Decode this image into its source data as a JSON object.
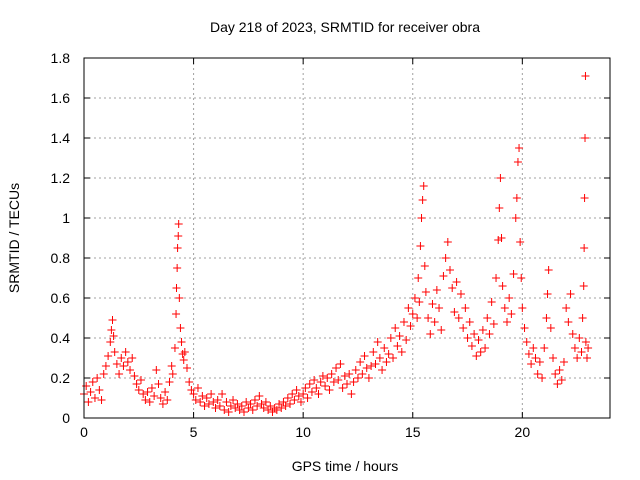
{
  "chart_data": {
    "type": "scatter",
    "title": "Day 218 of 2023, SRMTID for receiver obra",
    "xlabel": "GPS time / hours",
    "ylabel": "SRMTID / TECUs",
    "xlim": [
      0,
      24
    ],
    "ylim": [
      0,
      1.8
    ],
    "xticks": [
      0,
      5,
      10,
      15,
      20
    ],
    "yticks": [
      0,
      0.2,
      0.4,
      0.6,
      0.8,
      1,
      1.2,
      1.4,
      1.6,
      1.8
    ],
    "xtick_labels": [
      "0",
      "5",
      "10",
      "15",
      "20"
    ],
    "ytick_labels": [
      "0",
      "0.2",
      "0.4",
      "0.6",
      "0.8",
      "1",
      "1.2",
      "1.4",
      "1.6",
      "1.8"
    ],
    "grid": true,
    "marker": "+",
    "color": "#ff0000",
    "series": [
      {
        "name": "SRMTID",
        "points": [
          [
            0.0,
            0.12
          ],
          [
            0.1,
            0.16
          ],
          [
            0.2,
            0.08
          ],
          [
            0.3,
            0.13
          ],
          [
            0.4,
            0.18
          ],
          [
            0.5,
            0.1
          ],
          [
            0.6,
            0.2
          ],
          [
            0.7,
            0.14
          ],
          [
            0.8,
            0.09
          ],
          [
            0.9,
            0.22
          ],
          [
            1.0,
            0.26
          ],
          [
            1.1,
            0.31
          ],
          [
            1.2,
            0.38
          ],
          [
            1.25,
            0.44
          ],
          [
            1.3,
            0.49
          ],
          [
            1.35,
            0.41
          ],
          [
            1.4,
            0.33
          ],
          [
            1.5,
            0.27
          ],
          [
            1.6,
            0.22
          ],
          [
            1.7,
            0.3
          ],
          [
            1.8,
            0.26
          ],
          [
            1.9,
            0.33
          ],
          [
            2.0,
            0.28
          ],
          [
            2.1,
            0.24
          ],
          [
            2.2,
            0.3
          ],
          [
            2.3,
            0.21
          ],
          [
            2.4,
            0.17
          ],
          [
            2.5,
            0.14
          ],
          [
            2.6,
            0.19
          ],
          [
            2.7,
            0.12
          ],
          [
            2.8,
            0.09
          ],
          [
            2.9,
            0.13
          ],
          [
            3.0,
            0.08
          ],
          [
            3.1,
            0.15
          ],
          [
            3.2,
            0.11
          ],
          [
            3.3,
            0.24
          ],
          [
            3.4,
            0.17
          ],
          [
            3.5,
            0.1
          ],
          [
            3.6,
            0.07
          ],
          [
            3.7,
            0.13
          ],
          [
            3.8,
            0.09
          ],
          [
            3.9,
            0.18
          ],
          [
            4.0,
            0.26
          ],
          [
            4.05,
            0.22
          ],
          [
            4.15,
            0.35
          ],
          [
            4.2,
            0.52
          ],
          [
            4.22,
            0.65
          ],
          [
            4.25,
            0.75
          ],
          [
            4.27,
            0.85
          ],
          [
            4.3,
            0.91
          ],
          [
            4.32,
            0.97
          ],
          [
            4.35,
            0.6
          ],
          [
            4.4,
            0.45
          ],
          [
            4.45,
            0.38
          ],
          [
            4.5,
            0.32
          ],
          [
            4.55,
            0.29
          ],
          [
            4.6,
            0.33
          ],
          [
            4.7,
            0.25
          ],
          [
            4.8,
            0.18
          ],
          [
            4.9,
            0.14
          ],
          [
            5.0,
            0.12
          ],
          [
            5.1,
            0.09
          ],
          [
            5.2,
            0.15
          ],
          [
            5.3,
            0.08
          ],
          [
            5.4,
            0.11
          ],
          [
            5.5,
            0.06
          ],
          [
            5.6,
            0.1
          ],
          [
            5.7,
            0.07
          ],
          [
            5.8,
            0.12
          ],
          [
            5.9,
            0.08
          ],
          [
            6.0,
            0.05
          ],
          [
            6.1,
            0.09
          ],
          [
            6.2,
            0.06
          ],
          [
            6.3,
            0.12
          ],
          [
            6.4,
            0.04
          ],
          [
            6.5,
            0.08
          ],
          [
            6.6,
            0.03
          ],
          [
            6.7,
            0.06
          ],
          [
            6.8,
            0.09
          ],
          [
            6.9,
            0.05
          ],
          [
            7.0,
            0.07
          ],
          [
            7.1,
            0.04
          ],
          [
            7.2,
            0.06
          ],
          [
            7.3,
            0.03
          ],
          [
            7.4,
            0.08
          ],
          [
            7.5,
            0.05
          ],
          [
            7.6,
            0.07
          ],
          [
            7.7,
            0.04
          ],
          [
            7.8,
            0.09
          ],
          [
            7.9,
            0.06
          ],
          [
            8.0,
            0.11
          ],
          [
            8.1,
            0.07
          ],
          [
            8.2,
            0.05
          ],
          [
            8.3,
            0.08
          ],
          [
            8.4,
            0.04
          ],
          [
            8.5,
            0.06
          ],
          [
            8.6,
            0.03
          ],
          [
            8.7,
            0.05
          ],
          [
            8.8,
            0.04
          ],
          [
            8.9,
            0.07
          ],
          [
            9.0,
            0.05
          ],
          [
            9.1,
            0.08
          ],
          [
            9.2,
            0.06
          ],
          [
            9.3,
            0.1
          ],
          [
            9.4,
            0.07
          ],
          [
            9.5,
            0.12
          ],
          [
            9.6,
            0.09
          ],
          [
            9.7,
            0.14
          ],
          [
            9.8,
            0.11
          ],
          [
            9.9,
            0.08
          ],
          [
            10.0,
            0.12
          ],
          [
            10.1,
            0.15
          ],
          [
            10.2,
            0.1
          ],
          [
            10.3,
            0.17
          ],
          [
            10.4,
            0.13
          ],
          [
            10.5,
            0.19
          ],
          [
            10.6,
            0.15
          ],
          [
            10.7,
            0.12
          ],
          [
            10.8,
            0.18
          ],
          [
            10.9,
            0.21
          ],
          [
            11.0,
            0.16
          ],
          [
            11.1,
            0.2
          ],
          [
            11.2,
            0.14
          ],
          [
            11.3,
            0.22
          ],
          [
            11.4,
            0.18
          ],
          [
            11.5,
            0.25
          ],
          [
            11.6,
            0.19
          ],
          [
            11.7,
            0.27
          ],
          [
            11.8,
            0.15
          ],
          [
            11.9,
            0.21
          ],
          [
            12.0,
            0.17
          ],
          [
            12.1,
            0.22
          ],
          [
            12.2,
            0.12
          ],
          [
            12.3,
            0.18
          ],
          [
            12.4,
            0.24
          ],
          [
            12.5,
            0.2
          ],
          [
            12.6,
            0.28
          ],
          [
            12.7,
            0.22
          ],
          [
            12.8,
            0.31
          ],
          [
            12.9,
            0.25
          ],
          [
            13.0,
            0.2
          ],
          [
            13.1,
            0.26
          ],
          [
            13.2,
            0.33
          ],
          [
            13.3,
            0.27
          ],
          [
            13.4,
            0.38
          ],
          [
            13.5,
            0.3
          ],
          [
            13.6,
            0.24
          ],
          [
            13.7,
            0.35
          ],
          [
            13.8,
            0.28
          ],
          [
            13.9,
            0.32
          ],
          [
            14.0,
            0.4
          ],
          [
            14.1,
            0.3
          ],
          [
            14.2,
            0.45
          ],
          [
            14.3,
            0.36
          ],
          [
            14.4,
            0.41
          ],
          [
            14.5,
            0.33
          ],
          [
            14.6,
            0.48
          ],
          [
            14.7,
            0.39
          ],
          [
            14.8,
            0.55
          ],
          [
            14.9,
            0.46
          ],
          [
            15.0,
            0.52
          ],
          [
            15.1,
            0.6
          ],
          [
            15.2,
            0.5
          ],
          [
            15.25,
            0.7
          ],
          [
            15.3,
            0.58
          ],
          [
            15.35,
            0.86
          ],
          [
            15.4,
            1.0
          ],
          [
            15.45,
            1.09
          ],
          [
            15.5,
            1.16
          ],
          [
            15.55,
            0.76
          ],
          [
            15.6,
            0.63
          ],
          [
            15.7,
            0.5
          ],
          [
            15.8,
            0.42
          ],
          [
            15.9,
            0.57
          ],
          [
            16.0,
            0.48
          ],
          [
            16.1,
            0.64
          ],
          [
            16.2,
            0.55
          ],
          [
            16.3,
            0.44
          ],
          [
            16.4,
            0.71
          ],
          [
            16.5,
            0.8
          ],
          [
            16.6,
            0.88
          ],
          [
            16.7,
            0.74
          ],
          [
            16.8,
            0.65
          ],
          [
            16.9,
            0.53
          ],
          [
            17.0,
            0.68
          ],
          [
            17.1,
            0.5
          ],
          [
            17.2,
            0.62
          ],
          [
            17.3,
            0.45
          ],
          [
            17.4,
            0.55
          ],
          [
            17.5,
            0.4
          ],
          [
            17.6,
            0.48
          ],
          [
            17.7,
            0.36
          ],
          [
            17.8,
            0.42
          ],
          [
            17.9,
            0.31
          ],
          [
            18.0,
            0.39
          ],
          [
            18.1,
            0.33
          ],
          [
            18.2,
            0.44
          ],
          [
            18.3,
            0.35
          ],
          [
            18.4,
            0.5
          ],
          [
            18.5,
            0.42
          ],
          [
            18.6,
            0.58
          ],
          [
            18.7,
            0.47
          ],
          [
            18.8,
            0.7
          ],
          [
            18.9,
            0.89
          ],
          [
            18.95,
            1.05
          ],
          [
            19.0,
            1.2
          ],
          [
            19.05,
            0.9
          ],
          [
            19.1,
            0.66
          ],
          [
            19.2,
            0.55
          ],
          [
            19.3,
            0.48
          ],
          [
            19.4,
            0.6
          ],
          [
            19.5,
            0.52
          ],
          [
            19.6,
            0.72
          ],
          [
            19.7,
            1.0
          ],
          [
            19.75,
            1.1
          ],
          [
            19.8,
            1.28
          ],
          [
            19.85,
            1.35
          ],
          [
            19.9,
            0.88
          ],
          [
            19.95,
            0.7
          ],
          [
            20.0,
            0.55
          ],
          [
            20.1,
            0.45
          ],
          [
            20.2,
            0.38
          ],
          [
            20.3,
            0.32
          ],
          [
            20.4,
            0.27
          ],
          [
            20.5,
            0.35
          ],
          [
            20.6,
            0.3
          ],
          [
            20.7,
            0.22
          ],
          [
            20.8,
            0.28
          ],
          [
            20.9,
            0.2
          ],
          [
            21.0,
            0.35
          ],
          [
            21.1,
            0.5
          ],
          [
            21.15,
            0.62
          ],
          [
            21.2,
            0.74
          ],
          [
            21.3,
            0.45
          ],
          [
            21.4,
            0.3
          ],
          [
            21.5,
            0.22
          ],
          [
            21.6,
            0.17
          ],
          [
            21.7,
            0.24
          ],
          [
            21.8,
            0.19
          ],
          [
            21.9,
            0.28
          ],
          [
            22.0,
            0.55
          ],
          [
            22.1,
            0.48
          ],
          [
            22.2,
            0.62
          ],
          [
            22.3,
            0.42
          ],
          [
            22.4,
            0.35
          ],
          [
            22.5,
            0.3
          ],
          [
            22.6,
            0.4
          ],
          [
            22.7,
            0.33
          ],
          [
            22.75,
            0.5
          ],
          [
            22.8,
            0.66
          ],
          [
            22.82,
            0.85
          ],
          [
            22.84,
            1.1
          ],
          [
            22.86,
            1.4
          ],
          [
            22.88,
            1.71
          ],
          [
            22.9,
            0.38
          ],
          [
            22.95,
            0.3
          ],
          [
            23.0,
            0.35
          ]
        ]
      }
    ]
  }
}
